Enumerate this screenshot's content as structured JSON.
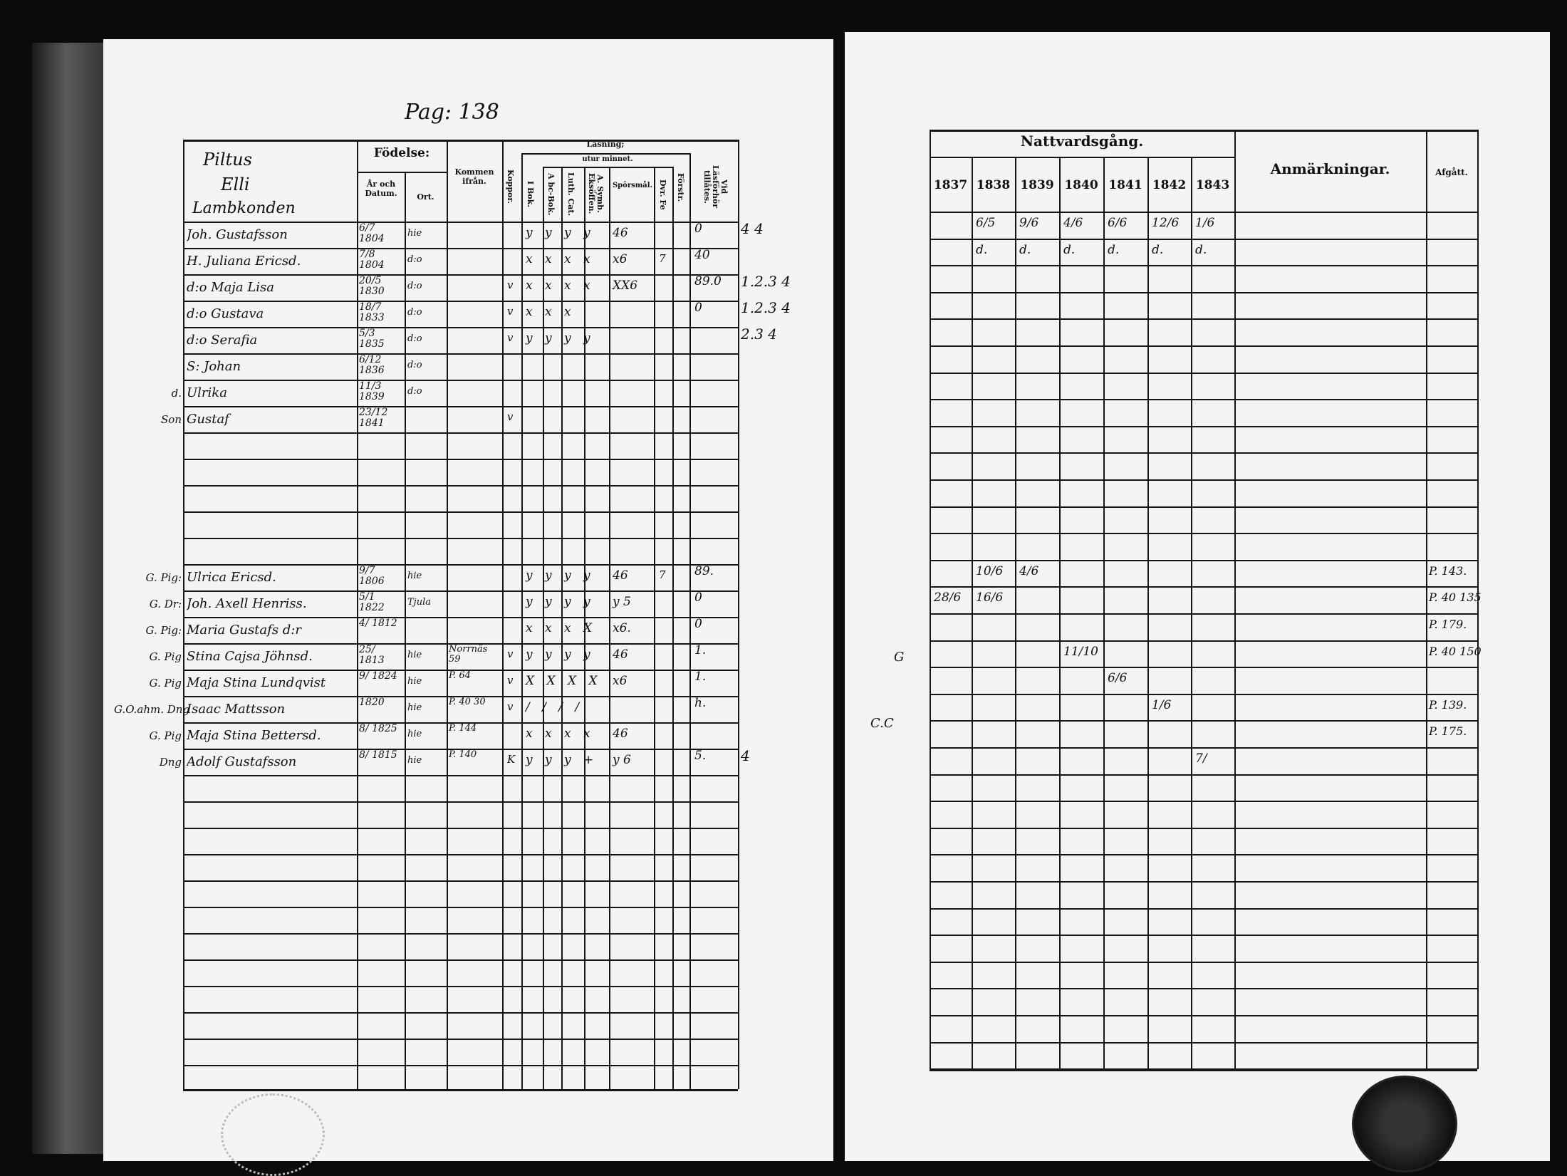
{
  "left_page": {
    "page_ref": "Pag: 138",
    "headers": {
      "name_col": [
        "Piltus",
        "Elli",
        "Lambkonden"
      ],
      "fodelse": "Födelse:",
      "ar_och_datum": "År och Datum.",
      "ort": "Ort.",
      "kommen_ifran": "Kommen ifrån.",
      "koppor": "Koppor.",
      "lasning": "Läsning;",
      "utur_minnet": "utur minnet.",
      "i_bok": "I Bok.",
      "abc_bok": "A bc-Bok.",
      "luth_cat": "Luth. Cat.",
      "a_symb": "A. Symb. Eksöffen.",
      "sporsmal": "Spörsmål.",
      "dvr_fe": "Dvr. Fe",
      "forstr": "Förstr.",
      "vid_lasforhor": "Vid Läsförhör tillåtes."
    },
    "rows": [
      {
        "prefix": "",
        "name": "Joh. Gustafsson",
        "date": "6/7 1804",
        "ort": "hie",
        "kommen": "",
        "koppor": "",
        "marks": "y y y y",
        "sporsmal": "46",
        "dvr": "",
        "forstr": "",
        "vid": "0",
        "margin": "4 4"
      },
      {
        "prefix": "",
        "name": "H. Juliana Ericsd.",
        "date": "7/8 1804",
        "ort": "d:o",
        "kommen": "",
        "koppor": "",
        "marks": "x x x x",
        "sporsmal": "x6",
        "dvr": "7",
        "forstr": "",
        "vid": "40",
        "margin": ""
      },
      {
        "prefix": "",
        "name": "d:o Maja Lisa",
        "date": "20/5 1830",
        "ort": "d:o",
        "kommen": "",
        "koppor": "v",
        "marks": "x x x x",
        "sporsmal": "XX6",
        "dvr": "",
        "forstr": "",
        "vid": "89.0",
        "margin": "1.2.3 4"
      },
      {
        "prefix": "",
        "name": "d:o Gustava",
        "date": "18/7 1833",
        "ort": "d:o",
        "kommen": "",
        "koppor": "v",
        "marks": "x x x",
        "sporsmal": "",
        "dvr": "",
        "forstr": "",
        "vid": "0",
        "margin": "1.2.3 4"
      },
      {
        "prefix": "",
        "name": "d:o Serafia",
        "date": "5/3 1835",
        "ort": "d:o",
        "kommen": "",
        "koppor": "v",
        "marks": "y y y y",
        "sporsmal": "",
        "dvr": "",
        "forstr": "",
        "vid": "",
        "margin": "2.3 4"
      },
      {
        "prefix": "",
        "name": "S: Johan",
        "date": "6/12 1836",
        "ort": "d:o",
        "kommen": "",
        "koppor": "",
        "marks": "",
        "sporsmal": "",
        "dvr": "",
        "forstr": "",
        "vid": "",
        "margin": ""
      },
      {
        "prefix": "d.",
        "name": "Ulrika",
        "date": "11/3 1839",
        "ort": "d:o",
        "kommen": "",
        "koppor": "",
        "marks": "",
        "sporsmal": "",
        "dvr": "",
        "forstr": "",
        "vid": "",
        "margin": ""
      },
      {
        "prefix": "Son",
        "name": "Gustaf",
        "date": "23/12 1841",
        "ort": "",
        "kommen": "",
        "koppor": "v",
        "marks": "",
        "sporsmal": "",
        "dvr": "",
        "forstr": "",
        "vid": "",
        "margin": ""
      }
    ],
    "rows2": [
      {
        "prefix": "G. Pig:",
        "name": "Ulrica Ericsd.",
        "date": "9/7 1806",
        "ort": "hie",
        "kommen": "",
        "koppor": "",
        "marks": "y y y y",
        "sporsmal": "46",
        "dvr": "7",
        "forstr": "",
        "vid": "89.",
        "margin": ""
      },
      {
        "prefix": "G. Dr:",
        "name": "Joh. Axell Henriss.",
        "date": "5/1 1822",
        "ort": "Tjula",
        "kommen": "",
        "koppor": "",
        "marks": "y y y y",
        "sporsmal": "y 5",
        "dvr": "",
        "forstr": "",
        "vid": "0",
        "margin": ""
      },
      {
        "prefix": "G. Pig:",
        "name": "Maria Gustafs d:r",
        "date": "4/ 1812",
        "ort": "",
        "kommen": "",
        "koppor": "",
        "marks": "x x x X",
        "sporsmal": "x6.",
        "dvr": "",
        "forstr": "",
        "vid": "0",
        "margin": ""
      },
      {
        "prefix": "G. Pig",
        "name": "Stina Cajsa Jöhnsd.",
        "date": "25/ 1813",
        "ort": "hie",
        "kommen": "Norrnäs 59",
        "koppor": "v",
        "marks": "y y y y",
        "sporsmal": "46",
        "dvr": "",
        "forstr": "",
        "vid": "1.",
        "margin": ""
      },
      {
        "prefix": "G. Pig",
        "name": "Maja Stina Lundqvist",
        "date": "9/ 1824",
        "ort": "hie",
        "kommen": "P. 64",
        "koppor": "v",
        "marks": "X X X X",
        "sporsmal": "x6",
        "dvr": "",
        "forstr": "",
        "vid": "1.",
        "margin": ""
      },
      {
        "prefix": "G.O.ahm. Dng",
        "name": "Isaac Mattsson",
        "date": "1820",
        "ort": "hie",
        "kommen": "P. 40 30",
        "koppor": "v",
        "marks": "/ / / /",
        "sporsmal": "",
        "dvr": "",
        "forstr": "",
        "vid": "h.",
        "margin": ""
      },
      {
        "prefix": "G. Pig",
        "name": "Maja Stina Bettersd.",
        "date": "8/ 1825",
        "ort": "hie",
        "kommen": "P. 144",
        "koppor": "",
        "marks": "x x x x",
        "sporsmal": "46",
        "dvr": "",
        "forstr": "",
        "vid": "",
        "margin": ""
      },
      {
        "prefix": "Dng",
        "name": "Adolf Gustafsson",
        "date": "8/ 1815",
        "ort": "hie",
        "kommen": "P. 140",
        "koppor": "K",
        "marks": "y y y +",
        "sporsmal": "y 6",
        "dvr": "",
        "forstr": "",
        "vid": "5.",
        "margin": "4"
      }
    ]
  },
  "right_page": {
    "headers": {
      "nattvardsgang": "Nattvardsgång.",
      "years": [
        "1837",
        "1838",
        "1839",
        "1840",
        "1841",
        "1842",
        "1843"
      ],
      "anmarkningar": "Anmärkningar.",
      "afgatt": "Afgått."
    },
    "rows": [
      {
        "cells": [
          "",
          "6/5",
          "9/6",
          "4/6",
          "6/6",
          "12/6",
          "1/6"
        ],
        "afgatt": ""
      },
      {
        "cells": [
          "",
          "d.",
          "d.",
          "d.",
          "d.",
          "d.",
          "d."
        ],
        "afgatt": ""
      }
    ],
    "rows2": [
      {
        "cells": [
          "",
          "10/6",
          "4/6",
          "",
          "",
          "",
          ""
        ],
        "afgatt": "P. 143."
      },
      {
        "cells": [
          "28/6",
          "16/6",
          "",
          "",
          "",
          "",
          ""
        ],
        "afgatt": "P. 40 135"
      },
      {
        "cells": [
          "",
          "",
          "",
          "",
          "",
          "",
          ""
        ],
        "afgatt": "P. 179."
      },
      {
        "cells": [
          "",
          "",
          "",
          "11/10",
          "",
          "",
          ""
        ],
        "afgatt": "P. 40 150"
      },
      {
        "cells": [
          "",
          "",
          "",
          "",
          "6/6",
          "",
          ""
        ],
        "afgatt": ""
      },
      {
        "cells": [
          "",
          "",
          "",
          "",
          "",
          "1/6",
          ""
        ],
        "afgatt": "P. 139."
      },
      {
        "cells": [
          "",
          "",
          "",
          "",
          "",
          "",
          ""
        ],
        "afgatt": "P. 175."
      },
      {
        "cells": [
          "",
          "",
          "",
          "",
          "",
          "",
          "7/"
        ],
        "afgatt": ""
      }
    ],
    "margin_notes": [
      "G",
      "C.C"
    ]
  },
  "colors": {
    "paper": "#f4f4f2",
    "ink": "#111111",
    "background": "#0b0b0b"
  }
}
